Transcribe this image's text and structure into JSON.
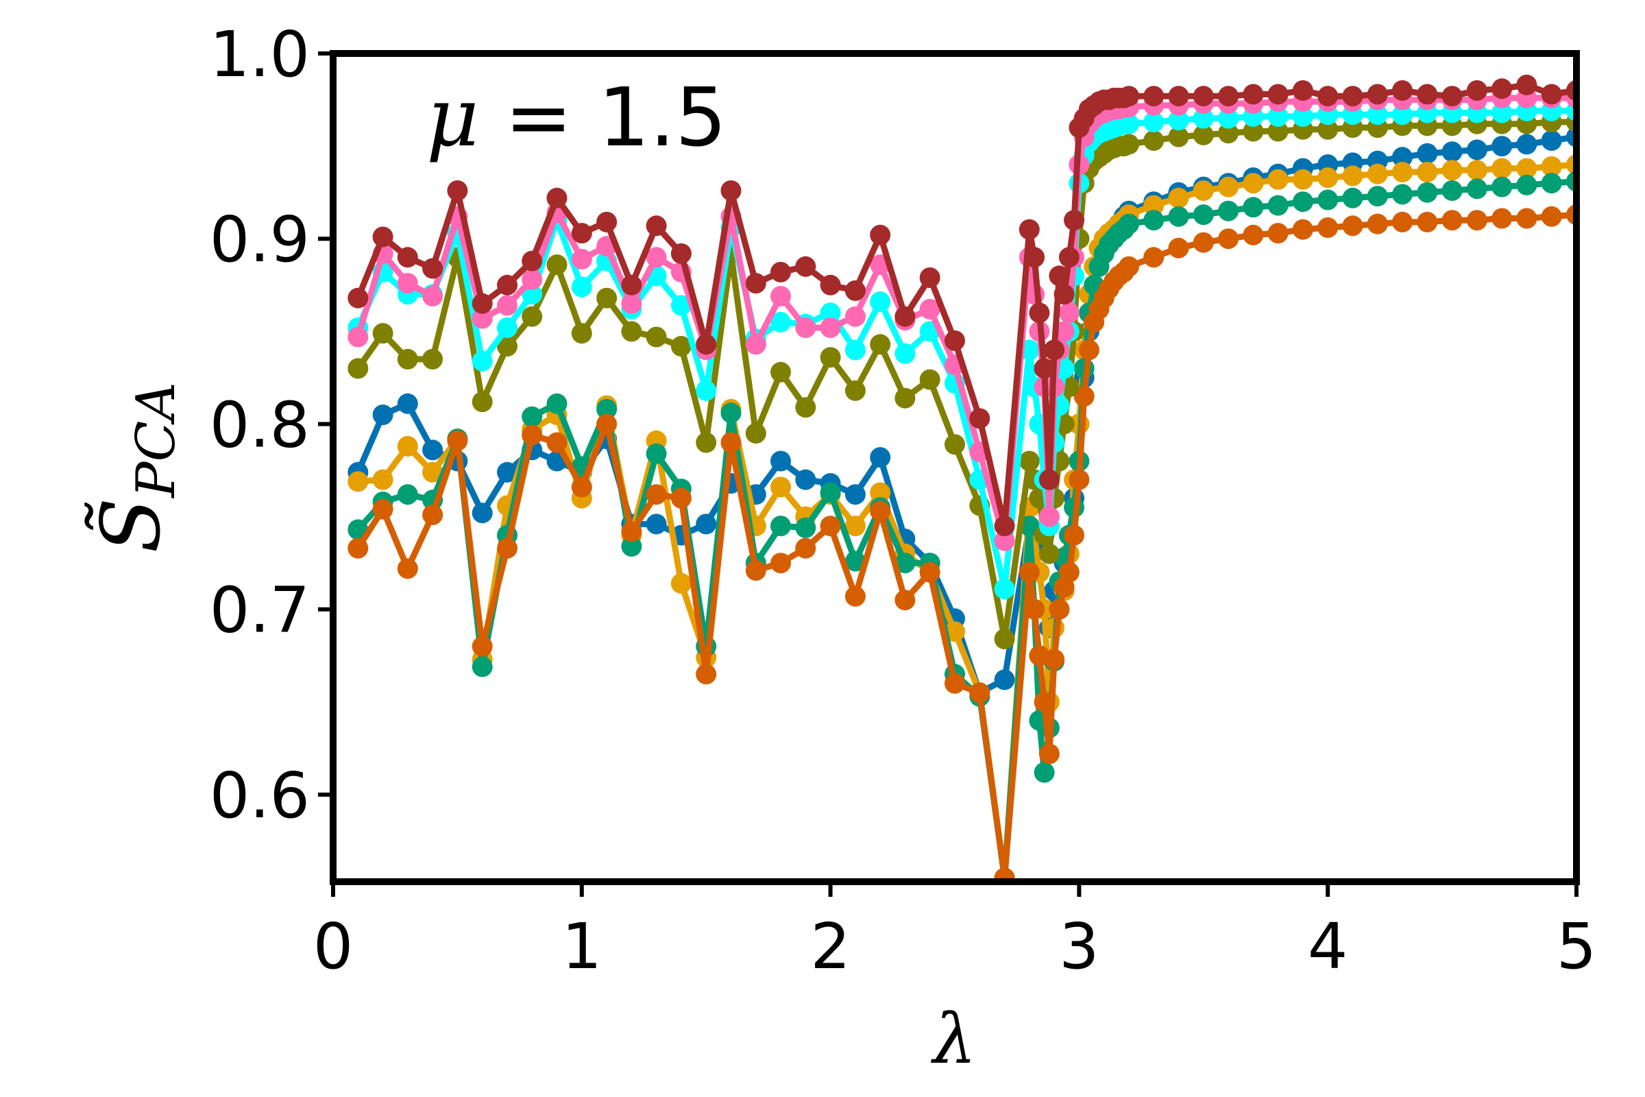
{
  "chart_data": {
    "type": "line",
    "title": "",
    "xlabel": "λ",
    "ylabel": "S̃",
    "ylabel_subscript": "PCA",
    "annotation": {
      "symbol": "μ",
      "text": " = 1.5"
    },
    "xlim": [
      0,
      5
    ],
    "ylim": [
      0.553,
      1.0
    ],
    "xticks": [
      0,
      1,
      2,
      3,
      4,
      5
    ],
    "xtick_labels": [
      "0",
      "1",
      "2",
      "3",
      "4",
      "5"
    ],
    "yticks": [
      0.6,
      0.7,
      0.8,
      0.9,
      1.0
    ],
    "ytick_labels": [
      "0.6",
      "0.7",
      "0.8",
      "0.9",
      "1.0"
    ],
    "grid": false,
    "legend": "none",
    "x_low": [
      0.1,
      0.2,
      0.3,
      0.4,
      0.5,
      0.6,
      0.7,
      0.8,
      0.9,
      1.0,
      1.1,
      1.2,
      1.3,
      1.4,
      1.5,
      1.6,
      1.7,
      1.8,
      1.9,
      2.0,
      2.1,
      2.2,
      2.3,
      2.4,
      2.5,
      2.6,
      2.7
    ],
    "x_trans": [
      2.8,
      2.82,
      2.84,
      2.86,
      2.88,
      2.9,
      2.92,
      2.94,
      2.96,
      2.98,
      3.0
    ],
    "x_high": [
      3.02,
      3.04,
      3.06,
      3.08,
      3.1,
      3.12,
      3.14,
      3.16,
      3.18,
      3.2,
      3.3,
      3.4,
      3.5,
      3.6,
      3.7,
      3.8,
      3.9,
      4.0,
      4.1,
      4.2,
      4.3,
      4.4,
      4.5,
      4.6,
      4.7,
      4.8,
      4.9,
      5.0
    ],
    "series": [
      {
        "color": "#0072b2",
        "low": [
          0.774,
          0.805,
          0.811,
          0.786,
          0.78,
          0.752,
          0.774,
          0.786,
          0.78,
          0.774,
          0.792,
          0.746,
          0.746,
          0.74,
          0.746,
          0.768,
          0.762,
          0.78,
          0.77,
          0.768,
          0.762,
          0.782,
          0.738,
          0.725,
          0.695,
          0.655,
          0.662
        ],
        "trans": [
          0.745,
          0.735,
          0.72,
          0.7,
          0.69,
          0.71,
          0.7,
          0.725,
          0.74,
          0.76,
          0.8
        ],
        "high": [
          0.825,
          0.85,
          0.87,
          0.885,
          0.895,
          0.9,
          0.905,
          0.908,
          0.912,
          0.915,
          0.92,
          0.925,
          0.928,
          0.93,
          0.933,
          0.935,
          0.938,
          0.94,
          0.941,
          0.942,
          0.944,
          0.946,
          0.947,
          0.948,
          0.95,
          0.951,
          0.953,
          0.955
        ]
      },
      {
        "color": "#e69f00",
        "low": [
          0.769,
          0.77,
          0.788,
          0.774,
          0.792,
          0.673,
          0.756,
          0.797,
          0.805,
          0.76,
          0.81,
          0.74,
          0.791,
          0.714,
          0.674,
          0.808,
          0.745,
          0.766,
          0.75,
          0.762,
          0.745,
          0.763,
          0.73,
          0.72,
          0.688,
          0.655,
          0.555
        ],
        "trans": [
          0.755,
          0.74,
          0.72,
          0.7,
          0.65,
          0.69,
          0.7,
          0.71,
          0.73,
          0.77,
          0.8
        ],
        "high": [
          0.84,
          0.87,
          0.885,
          0.895,
          0.9,
          0.903,
          0.905,
          0.908,
          0.91,
          0.913,
          0.918,
          0.922,
          0.926,
          0.928,
          0.93,
          0.932,
          0.932,
          0.933,
          0.934,
          0.935,
          0.936,
          0.936,
          0.937,
          0.937,
          0.938,
          0.938,
          0.939,
          0.94
        ]
      },
      {
        "color": "#009e73",
        "low": [
          0.743,
          0.758,
          0.762,
          0.759,
          0.792,
          0.669,
          0.74,
          0.804,
          0.811,
          0.777,
          0.808,
          0.734,
          0.784,
          0.765,
          0.68,
          0.806,
          0.725,
          0.745,
          0.744,
          0.763,
          0.726,
          0.755,
          0.725,
          0.725,
          0.665,
          0.653,
          0.555
        ],
        "trans": [
          0.745,
          0.7,
          0.64,
          0.612,
          0.636,
          0.672,
          0.715,
          0.728,
          0.74,
          0.755,
          0.78
        ],
        "high": [
          0.83,
          0.86,
          0.875,
          0.885,
          0.892,
          0.897,
          0.9,
          0.903,
          0.905,
          0.908,
          0.91,
          0.912,
          0.913,
          0.915,
          0.917,
          0.918,
          0.92,
          0.921,
          0.922,
          0.923,
          0.924,
          0.925,
          0.926,
          0.927,
          0.928,
          0.929,
          0.93,
          0.931
        ]
      },
      {
        "color": "#d55e00",
        "low": [
          0.733,
          0.754,
          0.722,
          0.751,
          0.791,
          0.68,
          0.733,
          0.794,
          0.79,
          0.766,
          0.8,
          0.742,
          0.762,
          0.76,
          0.665,
          0.79,
          0.721,
          0.725,
          0.733,
          0.745,
          0.707,
          0.753,
          0.705,
          0.72,
          0.66,
          0.655,
          0.555
        ],
        "trans": [
          0.72,
          0.7,
          0.675,
          0.65,
          0.622,
          0.673,
          0.7,
          0.712,
          0.72,
          0.74,
          0.77
        ],
        "high": [
          0.815,
          0.84,
          0.855,
          0.862,
          0.868,
          0.873,
          0.877,
          0.88,
          0.882,
          0.885,
          0.89,
          0.895,
          0.898,
          0.9,
          0.902,
          0.903,
          0.905,
          0.906,
          0.907,
          0.908,
          0.909,
          0.909,
          0.91,
          0.91,
          0.911,
          0.911,
          0.912,
          0.913
        ]
      },
      {
        "color": "#808000",
        "low": [
          0.83,
          0.849,
          0.835,
          0.835,
          0.89,
          0.812,
          0.842,
          0.858,
          0.886,
          0.849,
          0.868,
          0.85,
          0.847,
          0.842,
          0.79,
          0.892,
          0.795,
          0.828,
          0.809,
          0.836,
          0.818,
          0.843,
          0.814,
          0.824,
          0.789,
          0.756,
          0.684
        ],
        "trans": [
          0.78,
          0.77,
          0.76,
          0.74,
          0.73,
          0.76,
          0.78,
          0.8,
          0.82,
          0.85,
          0.9
        ],
        "high": [
          0.93,
          0.938,
          0.942,
          0.944,
          0.946,
          0.948,
          0.949,
          0.95,
          0.95,
          0.951,
          0.953,
          0.955,
          0.956,
          0.957,
          0.958,
          0.958,
          0.959,
          0.959,
          0.96,
          0.96,
          0.961,
          0.961,
          0.961,
          0.962,
          0.962,
          0.962,
          0.963,
          0.963
        ]
      },
      {
        "color": "#00ffff",
        "low": [
          0.852,
          0.882,
          0.87,
          0.87,
          0.903,
          0.834,
          0.852,
          0.87,
          0.91,
          0.874,
          0.888,
          0.862,
          0.88,
          0.864,
          0.818,
          0.906,
          0.846,
          0.855,
          0.854,
          0.86,
          0.84,
          0.866,
          0.838,
          0.85,
          0.822,
          0.77,
          0.711
        ],
        "trans": [
          0.84,
          0.82,
          0.8,
          0.77,
          0.745,
          0.79,
          0.81,
          0.83,
          0.85,
          0.88,
          0.93
        ],
        "high": [
          0.945,
          0.952,
          0.955,
          0.957,
          0.958,
          0.959,
          0.96,
          0.961,
          0.962,
          0.962,
          0.963,
          0.964,
          0.965,
          0.965,
          0.966,
          0.966,
          0.966,
          0.967,
          0.967,
          0.967,
          0.967,
          0.968,
          0.968,
          0.968,
          0.968,
          0.969,
          0.969,
          0.969
        ]
      },
      {
        "color": "#ff69b4",
        "low": [
          0.847,
          0.892,
          0.876,
          0.869,
          0.912,
          0.857,
          0.864,
          0.878,
          0.914,
          0.889,
          0.896,
          0.865,
          0.89,
          0.882,
          0.84,
          0.912,
          0.843,
          0.869,
          0.852,
          0.852,
          0.858,
          0.886,
          0.856,
          0.862,
          0.832,
          0.785,
          0.737
        ],
        "trans": [
          0.89,
          0.87,
          0.85,
          0.82,
          0.75,
          0.82,
          0.84,
          0.85,
          0.86,
          0.89,
          0.94
        ],
        "high": [
          0.955,
          0.962,
          0.965,
          0.967,
          0.968,
          0.969,
          0.97,
          0.97,
          0.971,
          0.971,
          0.972,
          0.972,
          0.973,
          0.973,
          0.973,
          0.974,
          0.974,
          0.974,
          0.974,
          0.975,
          0.975,
          0.975,
          0.975,
          0.975,
          0.976,
          0.976,
          0.976,
          0.976
        ]
      },
      {
        "color": "#a52a2a",
        "low": [
          0.868,
          0.901,
          0.89,
          0.884,
          0.926,
          0.865,
          0.875,
          0.888,
          0.922,
          0.903,
          0.909,
          0.875,
          0.907,
          0.892,
          0.843,
          0.926,
          0.876,
          0.882,
          0.885,
          0.875,
          0.872,
          0.902,
          0.858,
          0.879,
          0.845,
          0.803,
          0.745
        ],
        "trans": [
          0.905,
          0.89,
          0.86,
          0.83,
          0.77,
          0.84,
          0.88,
          0.87,
          0.89,
          0.91,
          0.96
        ],
        "high": [
          0.965,
          0.97,
          0.972,
          0.974,
          0.975,
          0.975,
          0.976,
          0.976,
          0.976,
          0.977,
          0.977,
          0.977,
          0.977,
          0.977,
          0.978,
          0.978,
          0.98,
          0.977,
          0.977,
          0.978,
          0.98,
          0.978,
          0.977,
          0.98,
          0.981,
          0.983,
          0.978,
          0.98
        ]
      }
    ]
  }
}
